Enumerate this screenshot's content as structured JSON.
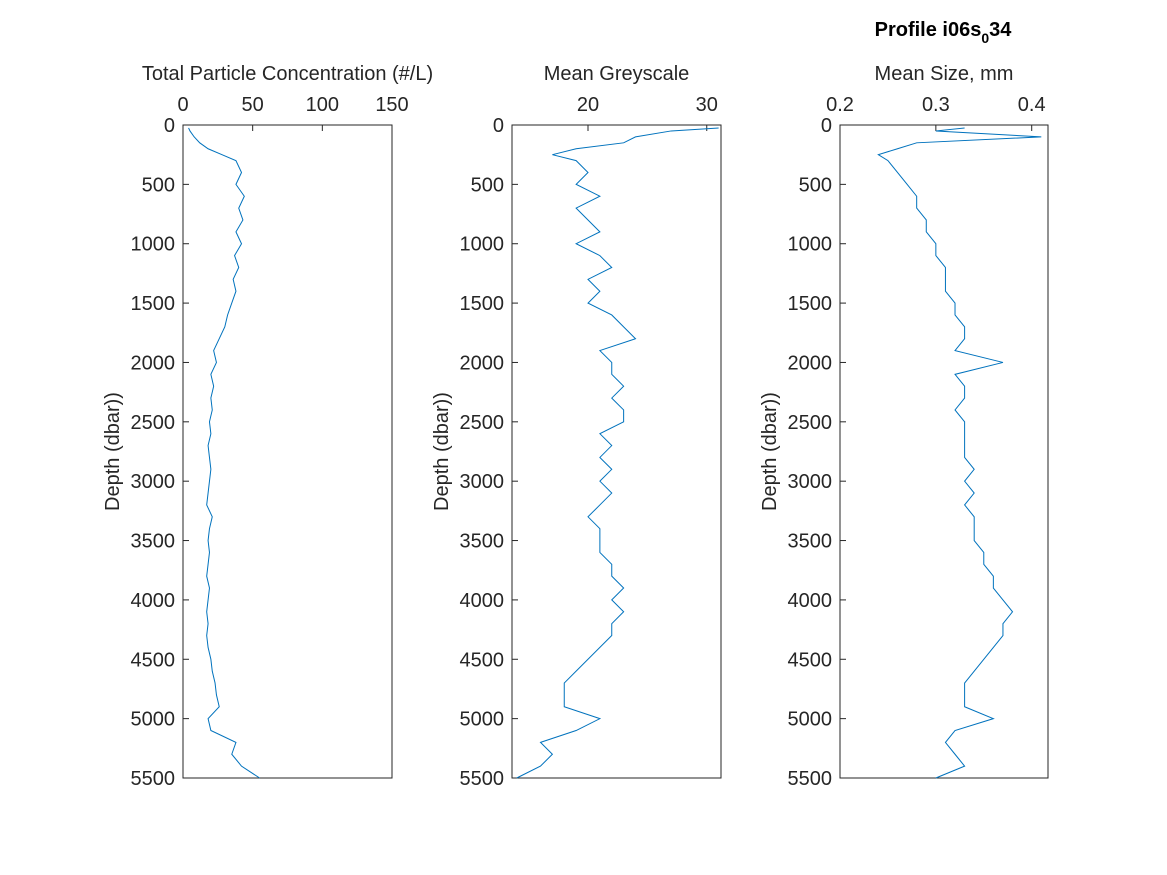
{
  "title_parts": [
    "Profile i06s",
    "0",
    "34"
  ],
  "chart_data": [
    {
      "type": "line",
      "xlabel": "Total Particle Concentration (#/L)",
      "ylabel": "Depth (dbar))",
      "color": "#0072bd",
      "y_reversed": true,
      "x_axis_location": "top",
      "xlim": [
        0,
        150
      ],
      "xticks": [
        0,
        50,
        100,
        150
      ],
      "ylim": [
        0,
        5500
      ],
      "yticks": [
        0,
        500,
        1000,
        1500,
        2000,
        2500,
        3000,
        3500,
        4000,
        4500,
        5000,
        5500
      ],
      "y": [
        25,
        50,
        100,
        150,
        200,
        250,
        300,
        400,
        500,
        600,
        700,
        800,
        900,
        1000,
        1100,
        1200,
        1300,
        1400,
        1500,
        1600,
        1700,
        1800,
        1900,
        2000,
        2100,
        2200,
        2300,
        2400,
        2500,
        2600,
        2700,
        2800,
        2900,
        3000,
        3100,
        3200,
        3300,
        3400,
        3500,
        3600,
        3700,
        3800,
        3900,
        4000,
        4100,
        4200,
        4300,
        4400,
        4500,
        4600,
        4700,
        4800,
        4900,
        5000,
        5100,
        5200,
        5300,
        5400,
        5500
      ],
      "values": [
        4,
        5,
        8,
        12,
        18,
        28,
        38,
        42,
        38,
        44,
        40,
        43,
        38,
        42,
        37,
        40,
        36,
        38,
        35,
        32,
        30,
        26,
        22,
        24,
        20,
        22,
        20,
        21,
        19,
        20,
        18,
        19,
        20,
        19,
        18,
        17,
        21,
        19,
        18,
        19,
        18,
        17,
        19,
        18,
        17,
        18,
        17,
        18,
        20,
        21,
        23,
        24,
        26,
        18,
        20,
        38,
        35,
        42,
        55
      ]
    },
    {
      "type": "line",
      "xlabel": "Mean Greyscale",
      "ylabel": "Depth (dbar))",
      "color": "#0072bd",
      "y_reversed": true,
      "x_axis_location": "top",
      "xlim": [
        13.6,
        31.2
      ],
      "xticks": [
        20,
        30
      ],
      "ylim": [
        0,
        5500
      ],
      "yticks": [
        0,
        500,
        1000,
        1500,
        2000,
        2500,
        3000,
        3500,
        4000,
        4500,
        5000,
        5500
      ],
      "y": [
        25,
        50,
        100,
        150,
        200,
        250,
        300,
        400,
        500,
        600,
        700,
        800,
        900,
        1000,
        1100,
        1200,
        1300,
        1400,
        1500,
        1600,
        1700,
        1800,
        1900,
        2000,
        2100,
        2200,
        2300,
        2400,
        2500,
        2600,
        2700,
        2800,
        2900,
        3000,
        3100,
        3200,
        3300,
        3400,
        3500,
        3600,
        3700,
        3800,
        3900,
        4000,
        4100,
        4200,
        4300,
        4400,
        4500,
        4600,
        4700,
        4800,
        4900,
        5000,
        5100,
        5200,
        5300,
        5400,
        5500
      ],
      "values": [
        31,
        27,
        24,
        23,
        19,
        17,
        19,
        20,
        19,
        21,
        19,
        20,
        21,
        19,
        21,
        22,
        20,
        21,
        20,
        22,
        23,
        24,
        21,
        22,
        22,
        23,
        22,
        23,
        23,
        21,
        22,
        21,
        22,
        21,
        22,
        21,
        20,
        21,
        21,
        21,
        22,
        22,
        23,
        22,
        23,
        22,
        22,
        21,
        20,
        19,
        18,
        18,
        18,
        21,
        19,
        16,
        17,
        16,
        14
      ]
    },
    {
      "type": "line",
      "xlabel": "Mean Size, mm",
      "ylabel": "Depth (dbar))",
      "color": "#0072bd",
      "y_reversed": true,
      "x_axis_location": "top",
      "xlim": [
        0.2,
        0.417
      ],
      "xticks": [
        0.2,
        0.3,
        0.4
      ],
      "ylim": [
        0,
        5500
      ],
      "yticks": [
        0,
        500,
        1000,
        1500,
        2000,
        2500,
        3000,
        3500,
        4000,
        4500,
        5000,
        5500
      ],
      "y": [
        25,
        50,
        100,
        150,
        200,
        250,
        300,
        400,
        500,
        600,
        700,
        800,
        900,
        1000,
        1100,
        1200,
        1300,
        1400,
        1500,
        1600,
        1700,
        1800,
        1900,
        2000,
        2100,
        2200,
        2300,
        2400,
        2500,
        2600,
        2700,
        2800,
        2900,
        3000,
        3100,
        3200,
        3300,
        3400,
        3500,
        3600,
        3700,
        3800,
        3900,
        4000,
        4100,
        4200,
        4300,
        4400,
        4500,
        4600,
        4700,
        4800,
        4900,
        5000,
        5100,
        5200,
        5300,
        5400,
        5500
      ],
      "values": [
        0.33,
        0.3,
        0.41,
        0.28,
        0.26,
        0.24,
        0.25,
        0.26,
        0.27,
        0.28,
        0.28,
        0.29,
        0.29,
        0.3,
        0.3,
        0.31,
        0.31,
        0.31,
        0.32,
        0.32,
        0.33,
        0.33,
        0.32,
        0.37,
        0.32,
        0.33,
        0.33,
        0.32,
        0.33,
        0.33,
        0.33,
        0.33,
        0.34,
        0.33,
        0.34,
        0.33,
        0.34,
        0.34,
        0.34,
        0.35,
        0.35,
        0.36,
        0.36,
        0.37,
        0.38,
        0.37,
        0.37,
        0.36,
        0.35,
        0.34,
        0.33,
        0.33,
        0.33,
        0.36,
        0.32,
        0.31,
        0.32,
        0.33,
        0.3
      ]
    }
  ]
}
